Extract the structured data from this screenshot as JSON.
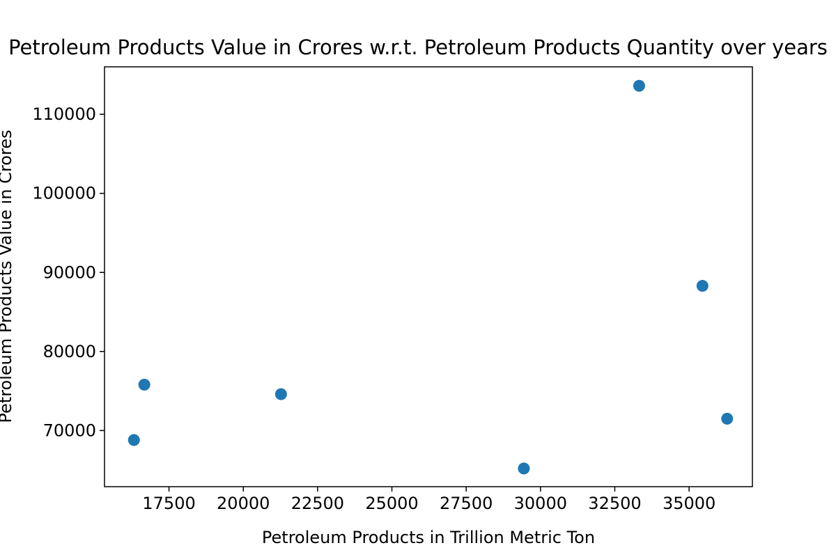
{
  "chart_data": {
    "type": "scatter",
    "title": "Petroleum Products Value in Crores w.r.t. Petroleum Products Quantity over years",
    "xlabel": "Petroleum Products in Trillion Metric Ton",
    "ylabel": "Petroleum Products Value in Crores",
    "xlim": [
      15330,
      37130
    ],
    "ylim": [
      62900,
      116000
    ],
    "xticks": [
      17500,
      20000,
      22500,
      25000,
      27500,
      30000,
      32500,
      35000
    ],
    "yticks": [
      70000,
      80000,
      90000,
      100000,
      110000
    ],
    "grid": false,
    "legend": "none",
    "marker_color": "#1f77b4",
    "points": [
      {
        "x": 16320,
        "y": 68800
      },
      {
        "x": 16670,
        "y": 75800
      },
      {
        "x": 21270,
        "y": 74600
      },
      {
        "x": 29440,
        "y": 65200
      },
      {
        "x": 33320,
        "y": 113600
      },
      {
        "x": 35450,
        "y": 88300
      },
      {
        "x": 36280,
        "y": 71500
      }
    ]
  }
}
